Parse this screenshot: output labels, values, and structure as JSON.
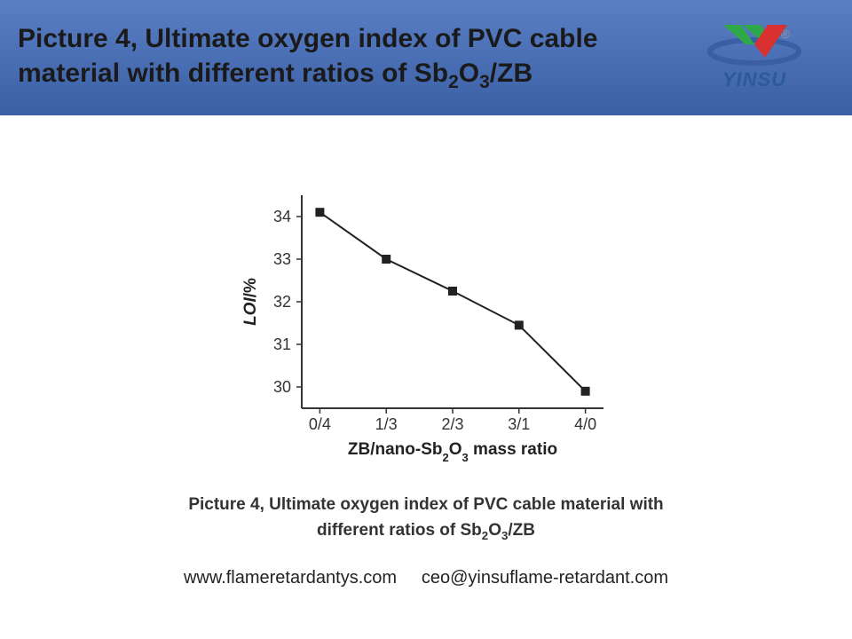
{
  "header": {
    "title_prefix": "Picture 4, Ultimate oxygen index of PVC cable material with different ratios of Sb",
    "title_sub1": "2",
    "title_mid1": "O",
    "title_sub2": "3",
    "title_suffix": "/ZB"
  },
  "logo": {
    "brand": "YINSU",
    "reg": "®",
    "chevron_color_left": "#2fa848",
    "chevron_color_right": "#d93030",
    "ellipse_color": "#3a5fa5"
  },
  "chart": {
    "type": "line",
    "categories": [
      "0/4",
      "1/3",
      "2/3",
      "3/1",
      "4/0"
    ],
    "values": [
      34.1,
      33.0,
      32.25,
      31.45,
      29.9
    ],
    "yticks": [
      30,
      31,
      32,
      33,
      34
    ],
    "ylim_min": 29.5,
    "ylim_max": 34.5,
    "ylabel_prefix": "LOI",
    "ylabel_suffix": "/%",
    "xlabel_prefix": "ZB/nano-Sb",
    "xlabel_sub1": "2",
    "xlabel_mid": "O",
    "xlabel_sub2": "3",
    "xlabel_suffix": " mass ratio",
    "line_color": "#222222",
    "marker_color": "#222222",
    "marker_size": 10,
    "line_width": 2,
    "axis_color": "#333333",
    "tick_fontsize": 18,
    "label_fontsize": 19,
    "background_color": "#ffffff"
  },
  "caption": {
    "line1_prefix": "Picture 4, Ultimate oxygen index of PVC cable material with",
    "line2_prefix": "different ratios of Sb",
    "line2_sub1": "2",
    "line2_mid": "O",
    "line2_sub2": "3",
    "line2_suffix": "/ZB"
  },
  "footer": {
    "url": "www.flameretardantys.com",
    "email": "ceo@yinsuflame-retardant.com"
  }
}
